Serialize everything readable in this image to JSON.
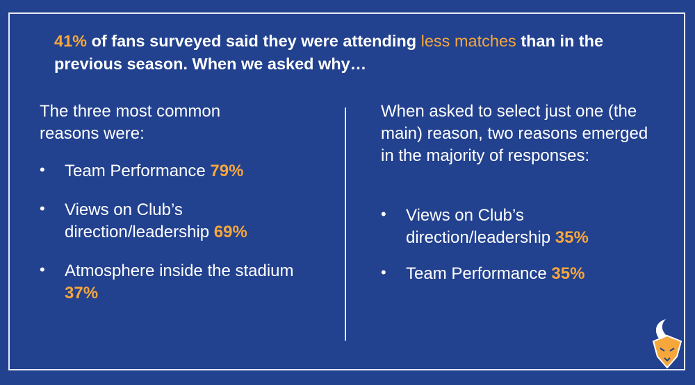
{
  "headline": {
    "stat": "41%",
    "text_1": "of fans surveyed said they were attending",
    "highlight": "less matches",
    "text_2": "than in the previous season. When we asked why…"
  },
  "left": {
    "intro": "The three most common reasons were:",
    "items": [
      {
        "label": "Team Performance",
        "value": "79%"
      },
      {
        "label": "Views on Club’s direction/leadership",
        "value": "69%"
      },
      {
        "label": "Atmosphere inside the stadium",
        "value": "37%"
      }
    ]
  },
  "right": {
    "intro": "When asked to select just one (the main) reason, two reasons emerged in the majority of responses:",
    "items": [
      {
        "label": "Views on Club’s direction/leadership",
        "value": "35%"
      },
      {
        "label": "Team Performance",
        "value": "35%"
      }
    ]
  }
}
